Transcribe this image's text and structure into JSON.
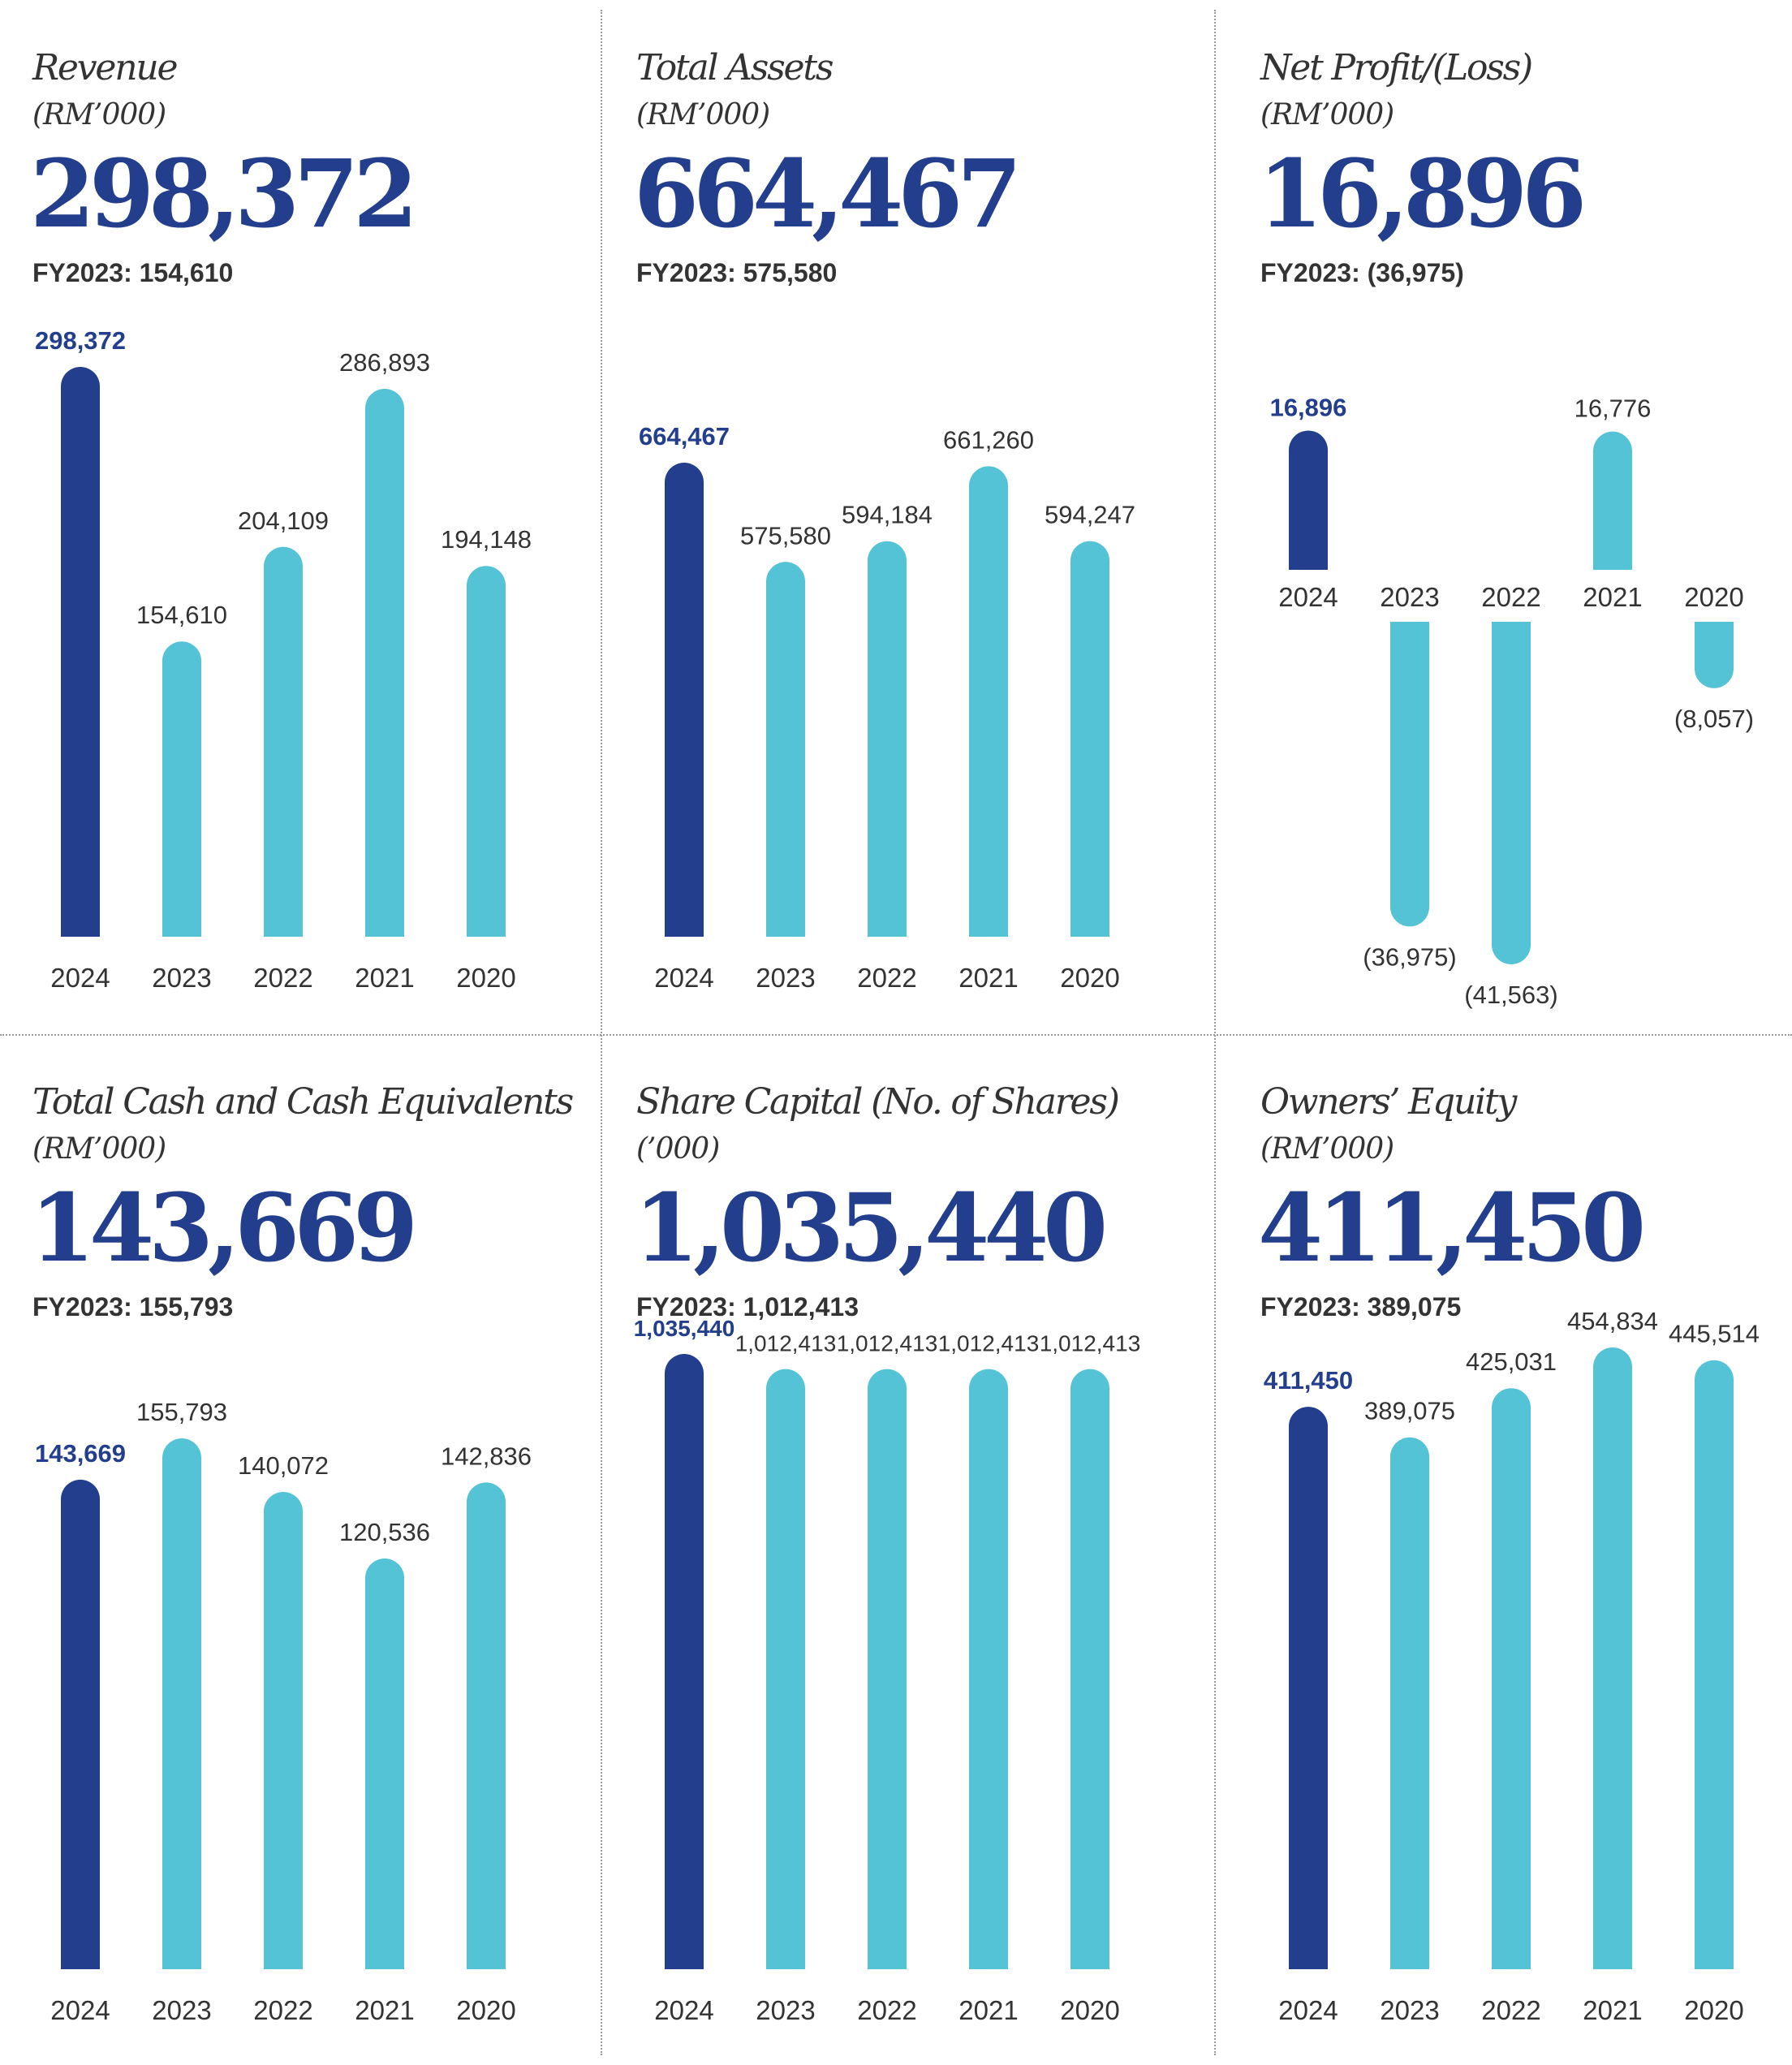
{
  "colors": {
    "highlight": "#233e8c",
    "bar": "#54c3d5",
    "label": "#333333",
    "headline": "#233e8c"
  },
  "panels": [
    {
      "title": "Revenue",
      "unit": "(RM’000)",
      "value": "298,372",
      "previous": "FY2023: 154,610",
      "chart_data": {
        "type": "bar",
        "categories": [
          "2024",
          "2023",
          "2022",
          "2021",
          "2020"
        ],
        "values": [
          298372,
          154610,
          204109,
          286893,
          194148
        ],
        "labels": [
          "298,372",
          "154,610",
          "204,109",
          "286,893",
          "194,148"
        ],
        "highlight_index": 0
      }
    },
    {
      "title": "Total Assets",
      "unit": "(RM’000)",
      "value": "664,467",
      "previous": "FY2023: 575,580",
      "chart_data": {
        "type": "bar",
        "categories": [
          "2024",
          "2023",
          "2022",
          "2021",
          "2020"
        ],
        "values": [
          664467,
          575580,
          594184,
          661260,
          594247
        ],
        "labels": [
          "664,467",
          "575,580",
          "594,184",
          "661,260",
          "594,247"
        ],
        "highlight_index": 0
      }
    },
    {
      "title": "Net Profit/(Loss)",
      "unit": "(RM’000)",
      "value": "16,896",
      "previous": "FY2023: (36,975)",
      "chart_data": {
        "type": "bar",
        "categories": [
          "2024",
          "2023",
          "2022",
          "2021",
          "2020"
        ],
        "values": [
          16896,
          -36975,
          -41563,
          16776,
          -8057
        ],
        "labels": [
          "16,896",
          "(36,975)",
          "(41,563)",
          "16,776",
          "(8,057)"
        ],
        "highlight_index": 0
      }
    },
    {
      "title": "Total Cash and Cash Equivalents",
      "unit": "(RM’000)",
      "value": "143,669",
      "previous": "FY2023: 155,793",
      "chart_data": {
        "type": "bar",
        "categories": [
          "2024",
          "2023",
          "2022",
          "2021",
          "2020"
        ],
        "values": [
          143669,
          155793,
          140072,
          120536,
          142836
        ],
        "labels": [
          "143,669",
          "155,793",
          "140,072",
          "120,536",
          "142,836"
        ],
        "highlight_index": 0
      }
    },
    {
      "title": "Share Capital (No. of Shares)",
      "unit": "(’000)",
      "value": "1,035,440",
      "previous": "FY2023: 1,012,413",
      "chart_data": {
        "type": "bar",
        "categories": [
          "2024",
          "2023",
          "2022",
          "2021",
          "2020"
        ],
        "values": [
          1035440,
          1012413,
          1012413,
          1012413,
          1012413
        ],
        "labels": [
          "1,035,440",
          "1,012,413",
          "1,012,413",
          "1,012,413",
          "1,012,413"
        ],
        "highlight_index": 0
      }
    },
    {
      "title": "Owners’ Equity",
      "unit": "(RM’000)",
      "value": "411,450",
      "previous": "FY2023: 389,075",
      "chart_data": {
        "type": "bar",
        "categories": [
          "2024",
          "2023",
          "2022",
          "2021",
          "2020"
        ],
        "values": [
          411450,
          389075,
          425031,
          454834,
          445514
        ],
        "labels": [
          "411,450",
          "389,075",
          "425,031",
          "454,834",
          "445,514"
        ],
        "highlight_index": 0
      }
    }
  ]
}
